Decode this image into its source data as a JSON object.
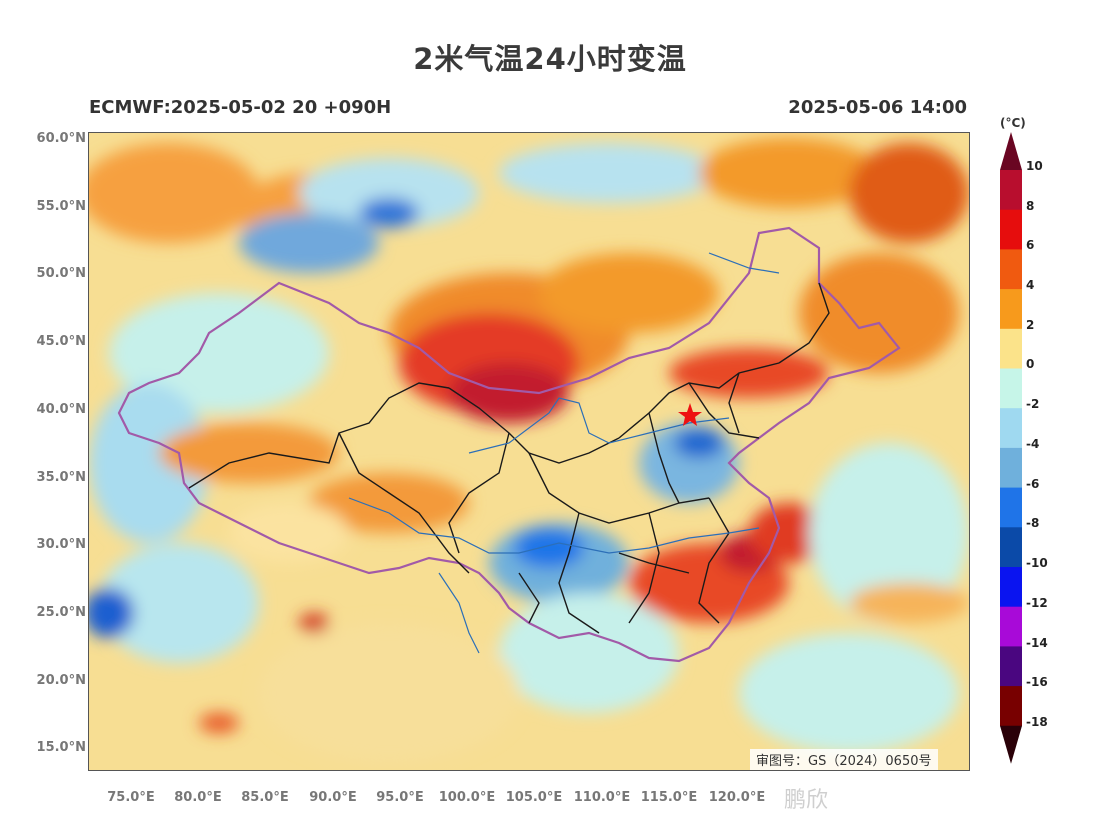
{
  "title": "2米气温24小时变温",
  "model_run": "ECMWF:2025-05-02 20 +090H",
  "valid_time": "2025-05-06 14:00",
  "approval_number": "审图号：GS（2024）0650号",
  "watermark": "鹏欣",
  "lat_labels": [
    "60.0°N",
    "55.0°N",
    "50.0°N",
    "45.0°N",
    "40.0°N",
    "35.0°N",
    "30.0°N",
    "25.0°N",
    "20.0°N",
    "15.0°N"
  ],
  "lon_labels": [
    "75.0°E",
    "80.0°E",
    "85.0°E",
    "90.0°E",
    "95.0°E",
    "100.0°E",
    "105.0°E",
    "110.0°E",
    "115.0°E",
    "120.0°E"
  ],
  "colorbar": {
    "unit": "(°C)",
    "labels": [
      "10",
      "8",
      "6",
      "4",
      "2",
      "0",
      "-2",
      "-4",
      "-6",
      "-8",
      "-10",
      "-12",
      "-14",
      "-16",
      "-18"
    ],
    "colors": [
      "#b80e2e",
      "#e60d0d",
      "#f05a10",
      "#f79a1c",
      "#fbe38a",
      "#c6f5e8",
      "#9fd9f0",
      "#6fb0dc",
      "#1f74e8",
      "#0b4aa8",
      "#0a14f0",
      "#a80ad8",
      "#4a0680",
      "#780000"
    ],
    "top_arrow_color": "#6a0622",
    "bottom_arrow_color": "#2a0008"
  },
  "colors": {
    "border_lines": "#a25aa8",
    "province_lines": "#1a1a1a",
    "rivers": "#2c6fb8",
    "capital_marker": "#e11"
  }
}
